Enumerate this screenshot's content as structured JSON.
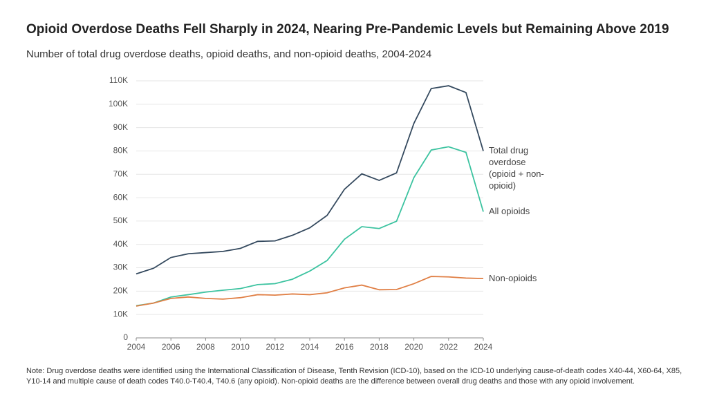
{
  "chart_data": {
    "type": "line",
    "title": "Opioid Overdose Deaths Fell Sharply in 2024, Nearing Pre-Pandemic Levels but Remaining Above 2019",
    "subtitle": "Number of total drug overdose deaths, opioid deaths, and non-opioid deaths, 2004-2024",
    "note": "Note: Drug overdose deaths were identified using the International Classification of Disease, Tenth Revision (ICD-10), based on the ICD-10 underlying cause-of-death codes X40-44, X60-64, X85, Y10-14 and multiple cause of death codes T40.0-T40.4, T40.6 (any opioid). Non-opioid deaths are the difference between overall drug deaths and those with any opioid involvement.",
    "x": [
      2004,
      2005,
      2006,
      2007,
      2008,
      2009,
      2010,
      2011,
      2012,
      2013,
      2014,
      2015,
      2016,
      2017,
      2018,
      2019,
      2020,
      2021,
      2022,
      2023,
      2024
    ],
    "series": [
      {
        "name": "Total drug overdose (opioid + non-opioid)",
        "color": "#34495e",
        "values": [
          27400,
          29800,
          34400,
          36000,
          36500,
          37000,
          38300,
          41300,
          41500,
          43900,
          47100,
          52400,
          63600,
          70200,
          67400,
          70600,
          91800,
          106700,
          107900,
          105000,
          80000
        ]
      },
      {
        "name": "All opioids",
        "color": "#3cc3a0",
        "values": [
          13800,
          14900,
          17500,
          18500,
          19600,
          20400,
          21100,
          22800,
          23200,
          25100,
          28600,
          33100,
          42200,
          47600,
          46800,
          49900,
          68600,
          80400,
          81800,
          79400,
          54000
        ]
      },
      {
        "name": "Non-opioids",
        "color": "#e07f45",
        "values": [
          13600,
          14900,
          16900,
          17500,
          16900,
          16600,
          17200,
          18500,
          18300,
          18800,
          18500,
          19300,
          21400,
          22600,
          20600,
          20700,
          23200,
          26300,
          26100,
          25600,
          25400
        ]
      }
    ],
    "xlim": [
      2004,
      2024
    ],
    "xticks": [
      2004,
      2006,
      2008,
      2010,
      2012,
      2014,
      2016,
      2018,
      2020,
      2022,
      2024
    ],
    "ylim": [
      0,
      110000
    ],
    "yticks": [
      0,
      {
        "value": 10000,
        "label": "10K"
      },
      {
        "value": 20000,
        "label": "20K"
      },
      {
        "value": 30000,
        "label": "30K"
      },
      {
        "value": 40000,
        "label": "40K"
      },
      {
        "value": 50000,
        "label": "50K"
      },
      {
        "value": 60000,
        "label": "60K"
      },
      {
        "value": 70000,
        "label": "70K"
      },
      {
        "value": 80000,
        "label": "80K"
      },
      {
        "value": 90000,
        "label": "90K"
      },
      {
        "value": 100000,
        "label": "100K"
      },
      {
        "value": 110000,
        "label": "110K"
      }
    ],
    "grid": true
  }
}
